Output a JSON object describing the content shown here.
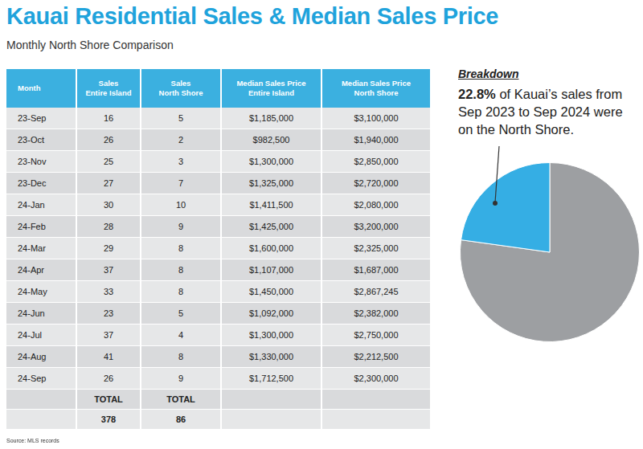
{
  "header": {
    "title": "Kauai Residential Sales & Median Sales Price",
    "subtitle": "Monthly North Shore Comparison"
  },
  "table": {
    "columns": [
      [
        "Month"
      ],
      [
        "Sales",
        "Entire Island"
      ],
      [
        "Sales",
        "North Shore"
      ],
      [
        "Median Sales Price",
        "Entire Island"
      ],
      [
        "Median Sales Price",
        "North Shore"
      ]
    ],
    "rows": [
      [
        "23-Sep",
        "16",
        "5",
        "$1,185,000",
        "$3,100,000"
      ],
      [
        "23-Oct",
        "26",
        "2",
        "$982,500",
        "$1,940,000"
      ],
      [
        "23-Nov",
        "25",
        "3",
        "$1,300,000",
        "$2,850,000"
      ],
      [
        "23-Dec",
        "27",
        "7",
        "$1,325,000",
        "$2,720,000"
      ],
      [
        "24-Jan",
        "30",
        "10",
        "$1,411,500",
        "$2,080,000"
      ],
      [
        "24-Feb",
        "28",
        "9",
        "$1,425,000",
        "$3,200,000"
      ],
      [
        "24-Mar",
        "29",
        "8",
        "$1,600,000",
        "$2,325,000"
      ],
      [
        "24-Apr",
        "37",
        "8",
        "$1,107,000",
        "$1,687,000"
      ],
      [
        "24-May",
        "33",
        "8",
        "$1,450,000",
        "$2,867,245"
      ],
      [
        "24-Jun",
        "23",
        "5",
        "$1,092,000",
        "$2,382,000"
      ],
      [
        "24-Jul",
        "37",
        "4",
        "$1,300,000",
        "$2,750,000"
      ],
      [
        "24-Aug",
        "41",
        "8",
        "$1,330,000",
        "$2,212,500"
      ],
      [
        "24-Sep",
        "26",
        "9",
        "$1,712,500",
        "$2,300,000"
      ]
    ],
    "totals": {
      "labels": [
        "TOTAL",
        "TOTAL"
      ],
      "values": [
        "378",
        "86"
      ]
    }
  },
  "breakdown": {
    "heading": "Breakdown",
    "highlight": "22.8%",
    "text": "of Kauai’s sales from Sep 2023 to Sep 2024 were on the North Shore."
  },
  "chart_data": {
    "type": "pie",
    "categories": [
      null,
      null
    ],
    "values": [
      77.2,
      22.8
    ],
    "colors": [
      "#9d9fa2",
      "#35aee4"
    ]
  },
  "source": "Source: MLS records"
}
